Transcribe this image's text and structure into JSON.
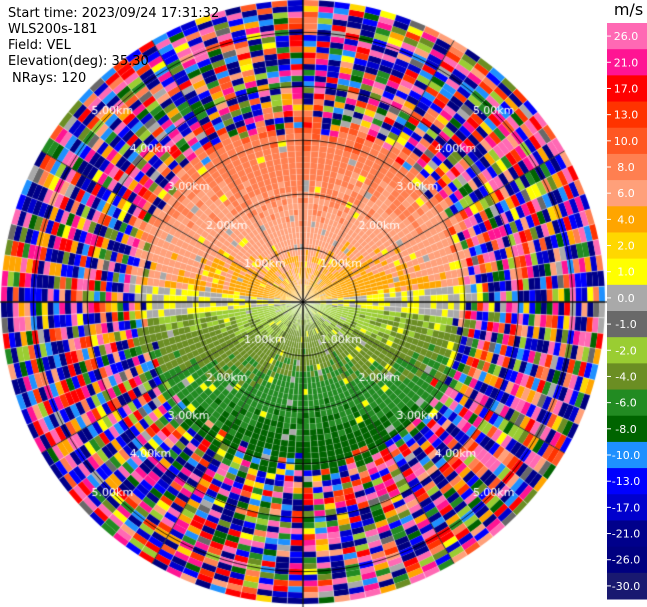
{
  "info": {
    "start_time": "Start time: 2023/09/24 17:31:32",
    "instrument": "WLS200s-181",
    "field": "Field: VEL",
    "elevation": "Elevation(deg): 35.30",
    "nrays": "NRays: 120"
  },
  "colorbar": {
    "units": "m/s",
    "ticks": [
      "26.0",
      "21.0",
      "17.0",
      "13.0",
      "10.0",
      "8.0",
      "6.0",
      "4.0",
      "2.0",
      "1.0",
      "0.0",
      "-1.0",
      "-2.0",
      "-4.0",
      "-6.0",
      "-8.0",
      "-10.0",
      "-13.0",
      "-17.0",
      "-21.0",
      "-26.0",
      "-30.0"
    ],
    "colors": [
      "#ff69b4",
      "#ff1493",
      "#ff0000",
      "#ff3300",
      "#ff5722",
      "#ff7f50",
      "#ffa07a",
      "#ffa500",
      "#ffd700",
      "#ffff00",
      "#a9a9a9",
      "#696969",
      "#9acd32",
      "#6b8e23",
      "#228b22",
      "#006400",
      "#1e90ff",
      "#0000ff",
      "#0000cd",
      "#00008b",
      "#000080",
      "#191970"
    ]
  },
  "chart_data": {
    "type": "heatmap",
    "projection": "ppi-polar",
    "field": "VEL",
    "units": "m/s",
    "nrays": 120,
    "elevation_deg": 35.3,
    "range_rings_km": [
      1.0,
      2.0,
      3.0,
      4.0,
      5.0
    ],
    "ring_labels": [
      "1.00km",
      "2.00km",
      "3.00km",
      "4.00km",
      "5.00km"
    ],
    "max_range_km": 5.6,
    "azimuth_spokes_deg": [
      0,
      30,
      60,
      90,
      120,
      150,
      180,
      210,
      240,
      270,
      300,
      330
    ],
    "value_range": [
      -30.0,
      26.0
    ],
    "velocity_pattern": {
      "north_sector_ms": [
        1.0,
        6.0
      ],
      "south_sector_ms": [
        -8.0,
        -1.0
      ],
      "near_zero_band_ms": [
        -1.0,
        1.0
      ],
      "valid_range_km": 3.0,
      "beyond_valid_range": "noise across full color scale"
    }
  }
}
